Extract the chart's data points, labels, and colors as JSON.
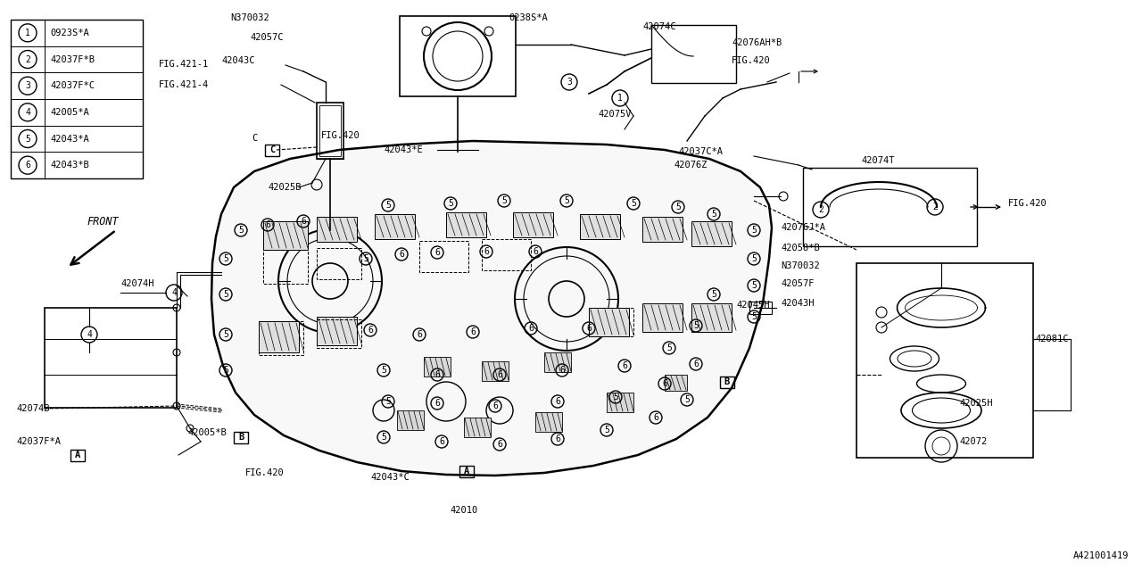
{
  "part_number": "A421001419",
  "background_color": "#ffffff",
  "line_color": "#000000",
  "legend_items": [
    {
      "num": "1",
      "code": "0923S*A"
    },
    {
      "num": "2",
      "code": "42037F*B"
    },
    {
      "num": "3",
      "code": "42037F*C"
    },
    {
      "num": "4",
      "code": "42005*A"
    },
    {
      "num": "5",
      "code": "42043*A"
    },
    {
      "num": "6",
      "code": "42043*B"
    }
  ],
  "fig_width": 12.8,
  "fig_height": 6.4,
  "dpi": 100
}
